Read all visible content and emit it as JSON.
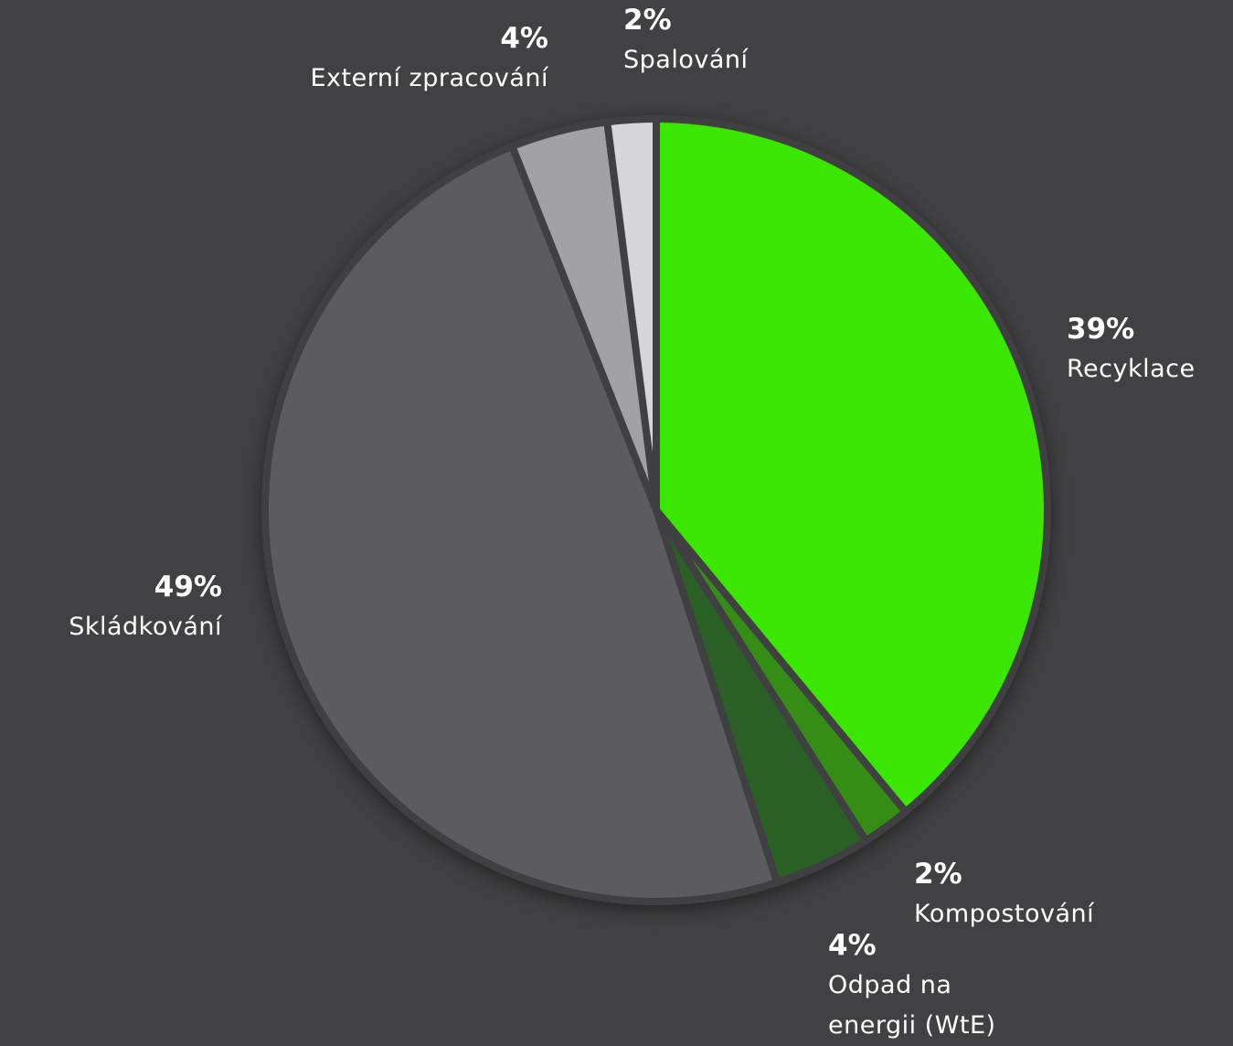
{
  "chart_data": {
    "type": "pie",
    "categories": [
      "Recyklace",
      "Kompostování",
      "Odpad na energii (WtE)",
      "Skládkování",
      "Externí zpracování",
      "Spalování"
    ],
    "values": [
      39,
      2,
      4,
      49,
      4,
      2
    ],
    "value_labels": [
      "39%",
      "2%",
      "4%",
      "49%",
      "4%",
      "2%"
    ],
    "colors": [
      "#3ae600",
      "#348d18",
      "#2a5e28",
      "#5c5c60",
      "#a2a2a6",
      "#d6d6d8"
    ]
  }
}
